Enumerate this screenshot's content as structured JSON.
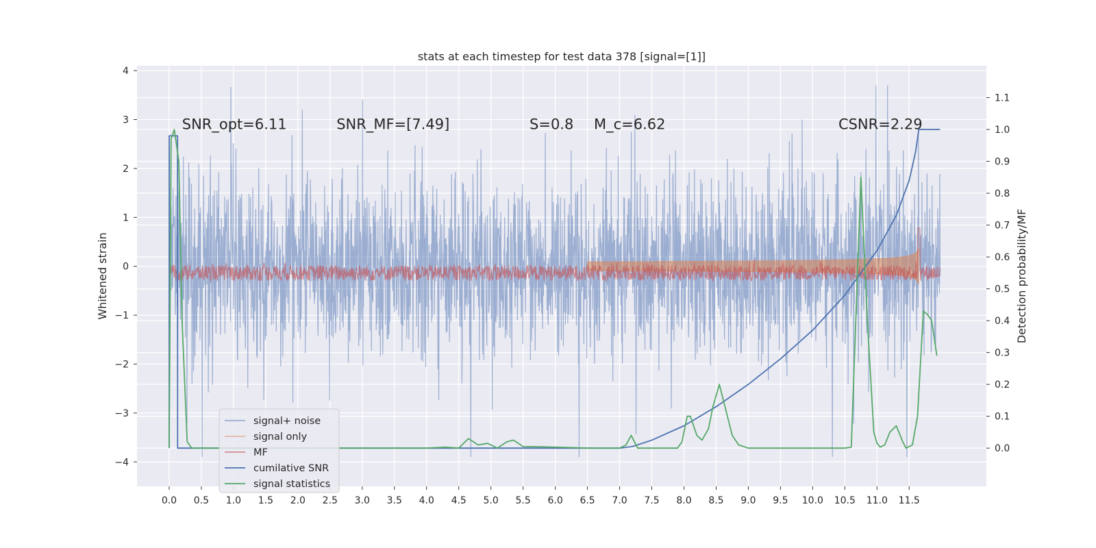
{
  "chart_data": {
    "type": "line",
    "title": "stats at each timestep for test data 378 [signal=[1]]",
    "ylabel": "Whitened strain",
    "y2label": "Detection probability/MF",
    "xlim": [
      -0.5,
      12.7
    ],
    "ylim": [
      -4.5,
      4.1
    ],
    "y2lim": [
      -0.12,
      1.2
    ],
    "x_ticks": [
      0.0,
      0.5,
      1.0,
      1.5,
      2.0,
      2.5,
      3.0,
      3.5,
      4.0,
      4.5,
      5.0,
      5.5,
      6.0,
      6.5,
      7.0,
      7.5,
      8.0,
      8.5,
      9.0,
      9.5,
      10.0,
      10.5,
      11.0,
      11.5
    ],
    "x_tick_labels": [
      "0.0",
      "0.5",
      "1.0",
      "1.5",
      "2.0",
      "2.5",
      "3.0",
      "3.5",
      "4.0",
      "4.5",
      "5.0",
      "5.5",
      "6.0",
      "6.5",
      "7.0",
      "7.5",
      "8.0",
      "8.5",
      "9.0",
      "9.5",
      "10.0",
      "10.5",
      "11.0",
      "11.5"
    ],
    "y_ticks": [
      -4,
      -3,
      -2,
      -1,
      0,
      1,
      2,
      3,
      4
    ],
    "y_tick_labels": [
      "−4",
      "−3",
      "−2",
      "−1",
      "0",
      "1",
      "2",
      "3",
      "4"
    ],
    "y2_ticks": [
      0.0,
      0.1,
      0.2,
      0.3,
      0.4,
      0.5,
      0.6,
      0.7,
      0.8,
      0.9,
      1.0,
      1.1
    ],
    "y2_tick_labels": [
      "0.0",
      "0.1",
      "0.2",
      "0.3",
      "0.4",
      "0.5",
      "0.6",
      "0.7",
      "0.8",
      "0.9",
      "1.0",
      "1.1"
    ],
    "grid": true,
    "legend_placement": "lower-left",
    "annotations": [
      {
        "id": "snr-opt",
        "text": "SNR_opt=6.11",
        "x": 0.2,
        "y": 2.9
      },
      {
        "id": "snr-mf",
        "text": "SNR_MF=[7.49]",
        "x": 2.6,
        "y": 2.9
      },
      {
        "id": "spin",
        "text": "S=0.8",
        "x": 5.6,
        "y": 2.9
      },
      {
        "id": "chirp-mass",
        "text": "M_c=6.62",
        "x": 6.6,
        "y": 2.9
      },
      {
        "id": "csnr",
        "text": "CSNR=2.29",
        "x": 10.4,
        "y": 2.9
      }
    ],
    "series": [
      {
        "name": "signal+ noise",
        "axis": "left",
        "color": "#4c72b0",
        "alpha": 0.5,
        "x_range": [
          0.0,
          11.98
        ],
        "envelope_std": 1.0
      },
      {
        "name": "signal only",
        "axis": "left",
        "color": "#dd8452",
        "alpha": 0.5,
        "x_range": [
          0.0,
          11.65
        ],
        "chirp_peak_amplitude": 0.6
      },
      {
        "name": "MF",
        "axis": "right",
        "color": "#c44e52",
        "alpha": 0.6,
        "x_range": [
          0.0,
          11.98
        ],
        "level": 0.55,
        "peak": [
          11.65,
          0.69
        ]
      },
      {
        "name": "cumilative SNR",
        "axis": "right",
        "color": "#4c72b0",
        "x": [
          0.0,
          0.001,
          0.13,
          0.131,
          7.0,
          7.2,
          7.5,
          8.0,
          8.5,
          9.0,
          9.5,
          10.0,
          10.5,
          11.0,
          11.3,
          11.5,
          11.6,
          11.65,
          11.98
        ],
        "y": [
          0.0,
          0.98,
          0.98,
          0.0,
          0.0,
          0.005,
          0.025,
          0.07,
          0.13,
          0.2,
          0.28,
          0.37,
          0.48,
          0.62,
          0.73,
          0.84,
          0.93,
          1.0,
          1.0
        ]
      },
      {
        "name": "signal statistics",
        "axis": "right",
        "color": "#55a868",
        "x": [
          0.0,
          0.03,
          0.08,
          0.15,
          0.2,
          0.28,
          0.35,
          1.0,
          2.0,
          3.0,
          4.0,
          4.3,
          4.5,
          4.65,
          4.8,
          4.95,
          5.1,
          5.25,
          5.35,
          5.5,
          5.8,
          6.2,
          6.5,
          7.0,
          7.1,
          7.18,
          7.28,
          7.45,
          7.9,
          7.97,
          8.05,
          8.1,
          8.2,
          8.28,
          8.38,
          8.45,
          8.55,
          8.65,
          8.75,
          8.85,
          9.0,
          9.5,
          10.0,
          10.5,
          10.6,
          10.75,
          10.85,
          10.95,
          11.0,
          11.05,
          11.12,
          11.2,
          11.3,
          11.4,
          11.45,
          11.55,
          11.63,
          11.72,
          11.78,
          11.85,
          11.93
        ],
        "y": [
          0.0,
          0.97,
          1.0,
          0.9,
          0.4,
          0.02,
          0.0,
          0.0,
          0.0,
          0.0,
          0.0,
          0.003,
          0.0,
          0.03,
          0.01,
          0.015,
          0.0,
          0.02,
          0.025,
          0.005,
          0.004,
          0.002,
          0.0,
          0.0,
          0.01,
          0.04,
          0.0,
          0.0,
          0.0,
          0.02,
          0.1,
          0.1,
          0.04,
          0.025,
          0.06,
          0.13,
          0.2,
          0.12,
          0.04,
          0.01,
          0.0,
          0.0,
          0.0,
          0.0,
          0.003,
          0.85,
          0.4,
          0.05,
          0.015,
          0.003,
          0.01,
          0.05,
          0.07,
          0.02,
          0.0,
          0.01,
          0.1,
          0.43,
          0.42,
          0.4,
          0.29
        ]
      }
    ]
  }
}
